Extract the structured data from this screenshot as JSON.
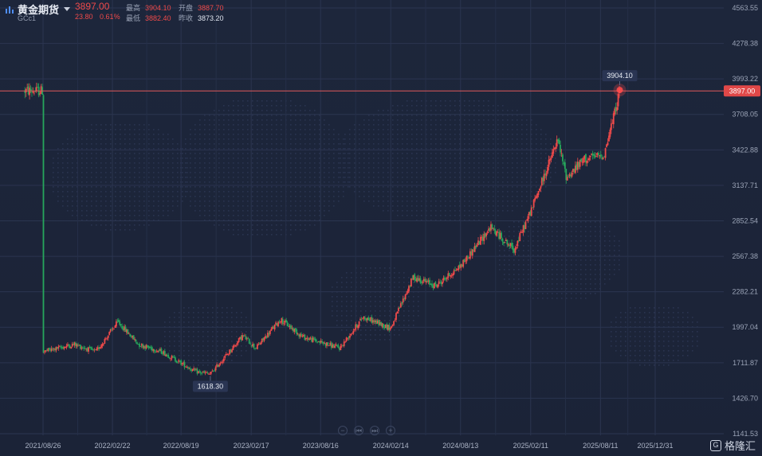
{
  "header": {
    "icon": "bar-chart-icon",
    "name": "黄金期货",
    "code": "GCc1",
    "price": "3897.00",
    "change": "23.80",
    "change_pct": "0.61%",
    "high_label": "最高",
    "high_value": "3904.10",
    "open_label": "开盘",
    "open_value": "3887.70",
    "low_label": "最低",
    "low_value": "3882.40",
    "prev_label": "昨收",
    "prev_value": "3873.20"
  },
  "zoom_controls": [
    "−",
    "⏮",
    "⏭",
    "+"
  ],
  "logo": {
    "icon": "g-logo-icon",
    "text": "格隆汇"
  },
  "colors": {
    "up": "#ef4a4a",
    "down": "#26a65b",
    "background": "#1c2439",
    "current_line": "#e05a5a"
  },
  "chart_data": {
    "type": "candlestick",
    "title": "",
    "y_ticks": [
      "4563.55",
      "4278.38",
      "3993.22",
      "3708.05",
      "3422.88",
      "3137.71",
      "2852.54",
      "2567.38",
      "2282.21",
      "1997.04",
      "1711.87",
      "1426.70",
      "1141.53"
    ],
    "x_ticks": [
      "2021/08/26",
      "2022/02/22",
      "2022/08/19",
      "2023/02/17",
      "2023/08/16",
      "2024/02/14",
      "2024/08/13",
      "2025/02/11",
      "2025/08/11",
      "2025/12/31"
    ],
    "ylim": [
      1141.53,
      4563.55
    ],
    "current_price": "3897.00",
    "max_label": "3904.10",
    "min_label": "1618.30",
    "grid": true,
    "series_trend": [
      {
        "date": "2021/08/26",
        "close": 1800
      },
      {
        "date": "2021/11/15",
        "close": 1860
      },
      {
        "date": "2022/01/10",
        "close": 1800
      },
      {
        "date": "2022/03/08",
        "close": 2040
      },
      {
        "date": "2022/05/01",
        "close": 1860
      },
      {
        "date": "2022/07/01",
        "close": 1800
      },
      {
        "date": "2022/09/26",
        "close": 1640
      },
      {
        "date": "2022/11/03",
        "close": 1620
      },
      {
        "date": "2023/01/26",
        "close": 1930
      },
      {
        "date": "2023/03/01",
        "close": 1830
      },
      {
        "date": "2023/05/04",
        "close": 2060
      },
      {
        "date": "2023/07/01",
        "close": 1920
      },
      {
        "date": "2023/10/05",
        "close": 1830
      },
      {
        "date": "2023/12/04",
        "close": 2080
      },
      {
        "date": "2024/02/14",
        "close": 1990
      },
      {
        "date": "2024/04/12",
        "close": 2400
      },
      {
        "date": "2024/06/10",
        "close": 2330
      },
      {
        "date": "2024/08/13",
        "close": 2490
      },
      {
        "date": "2024/10/30",
        "close": 2800
      },
      {
        "date": "2024/12/30",
        "close": 2620
      },
      {
        "date": "2025/02/11",
        "close": 2930
      },
      {
        "date": "2025/04/22",
        "close": 3500
      },
      {
        "date": "2025/05/15",
        "close": 3200
      },
      {
        "date": "2025/07/01",
        "close": 3350
      },
      {
        "date": "2025/08/20",
        "close": 3380
      },
      {
        "date": "2025/09/15",
        "close": 3700
      },
      {
        "date": "2025/09/30",
        "close": 3897
      }
    ]
  }
}
